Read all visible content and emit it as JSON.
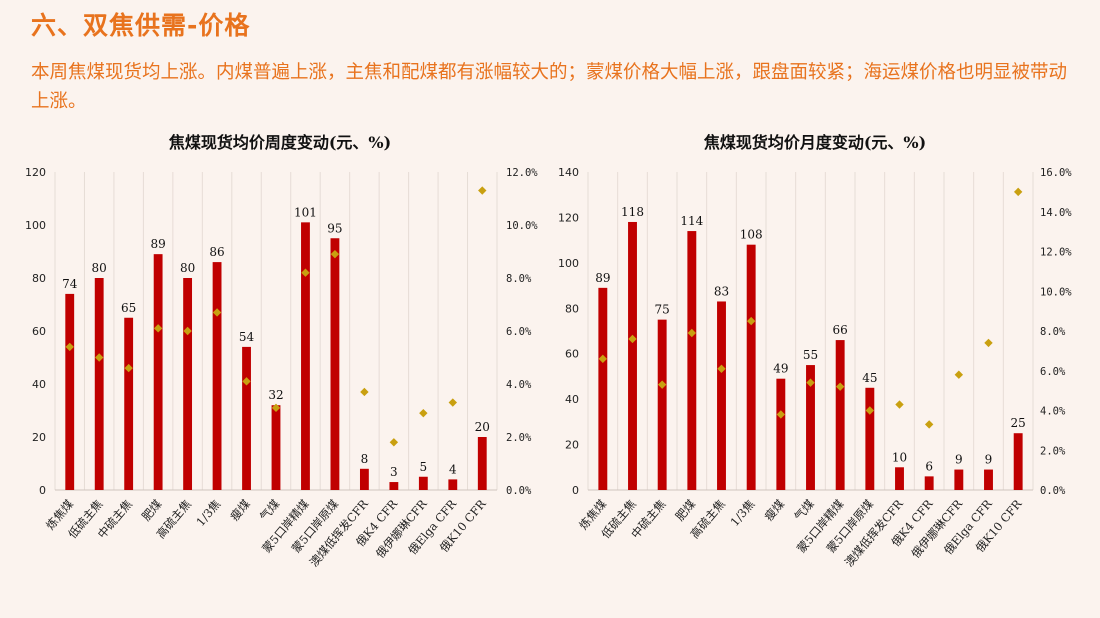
{
  "page": {
    "title": "六、双焦供需-价格",
    "summary": "本周焦煤现货均上涨。内煤普遍上涨，主焦和配煤都有涨幅较大的；蒙煤价格大幅上涨，跟盘面较紧；海运煤价格也明显被带动上涨。"
  },
  "colors": {
    "bar": "#c00000",
    "marker": "#c9a010",
    "title": "#e8731e",
    "background": "#fbf3ee",
    "grid": "#e6dcd6"
  },
  "chart_data": [
    {
      "type": "bar",
      "title": "焦煤现货均价周度变动(元、%)",
      "categories": [
        "炼焦煤",
        "低硫主焦",
        "中硫主焦",
        "肥煤",
        "高硫主焦",
        "1/3焦",
        "瘦煤",
        "气煤",
        "蒙5口岸精煤",
        "蒙5口岸原煤",
        "澳煤低挥发CFR",
        "俄K4 CFR",
        "俄伊娜琳CFR",
        "俄Elga CFR",
        "俄K10 CFR"
      ],
      "series": [
        {
          "axis": "left",
          "values": [
            74,
            80,
            65,
            89,
            80,
            86,
            54,
            32,
            101,
            95,
            8,
            3,
            5,
            4,
            20
          ],
          "data_labels": [
            "74",
            "80",
            "65",
            "89",
            "80",
            "86",
            "54",
            "32",
            "101",
            "95",
            "8",
            "3",
            "5",
            "4",
            "20"
          ]
        },
        {
          "axis": "right",
          "marker": "diamond",
          "values": [
            5.4,
            5.0,
            4.6,
            6.1,
            6.0,
            6.7,
            4.1,
            3.1,
            8.2,
            8.9,
            3.7,
            1.8,
            2.9,
            3.3,
            11.3
          ]
        }
      ],
      "ylim": [
        0,
        120
      ],
      "yticks": [
        "0",
        "20",
        "40",
        "60",
        "80",
        "100",
        "120"
      ],
      "y2lim": [
        0,
        12
      ],
      "y2ticks": [
        "0.0%",
        "2.0%",
        "4.0%",
        "6.0%",
        "8.0%",
        "10.0%",
        "12.0%"
      ],
      "grid": "vertical category separators"
    },
    {
      "type": "bar",
      "title": "焦煤现货均价月度变动(元、%)",
      "categories": [
        "炼焦煤",
        "低硫主焦",
        "中硫主焦",
        "肥煤",
        "高硫主焦",
        "1/3焦",
        "瘦煤",
        "气煤",
        "蒙5口岸精煤",
        "蒙5口岸原煤",
        "澳煤低挥发CFR",
        "俄K4 CFR",
        "俄伊娜琳CFR",
        "俄Elga CFR",
        "俄K10 CFR"
      ],
      "series": [
        {
          "axis": "left",
          "values": [
            89,
            118,
            75,
            114,
            83,
            108,
            49,
            55,
            66,
            45,
            10,
            6,
            9,
            9,
            25
          ],
          "data_labels": [
            "89",
            "118",
            "75",
            "114",
            "83",
            "108",
            "49",
            "55",
            "66",
            "45",
            "10",
            "6",
            "9",
            "9",
            "25"
          ]
        },
        {
          "axis": "right",
          "marker": "diamond",
          "values": [
            6.6,
            7.6,
            5.3,
            7.9,
            6.1,
            8.5,
            3.8,
            5.4,
            5.2,
            4.0,
            4.3,
            3.3,
            5.8,
            7.4,
            15.0
          ]
        }
      ],
      "ylim": [
        0,
        140
      ],
      "yticks": [
        "0",
        "20",
        "40",
        "60",
        "80",
        "100",
        "120",
        "140"
      ],
      "y2lim": [
        0,
        16
      ],
      "y2ticks": [
        "0.0%",
        "2.0%",
        "4.0%",
        "6.0%",
        "8.0%",
        "10.0%",
        "12.0%",
        "14.0%",
        "16.0%"
      ],
      "grid": "vertical category separators"
    }
  ]
}
